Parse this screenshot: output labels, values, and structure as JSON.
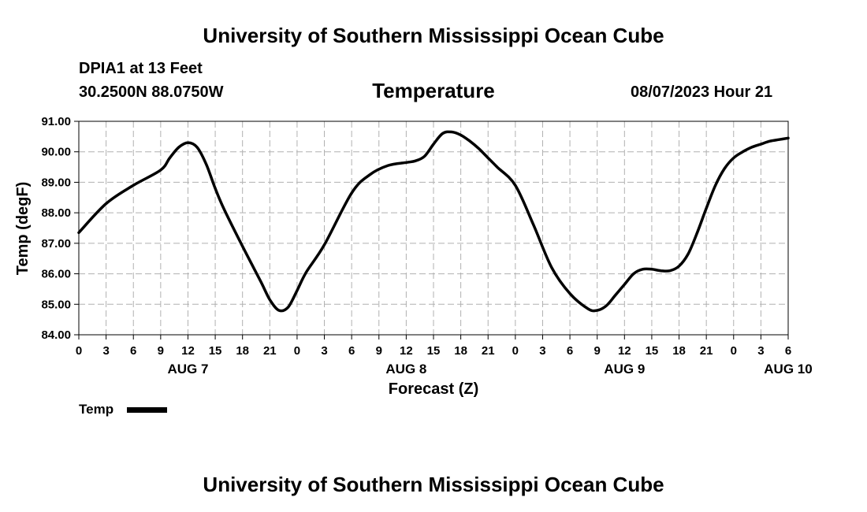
{
  "header": {
    "title": "University of Southern Mississippi Ocean Cube",
    "station": "DPIA1 at 13 Feet",
    "coords": "30.2500N  88.0750W",
    "date": "08/07/2023 Hour 21"
  },
  "footer": {
    "title": "University of Southern Mississippi Ocean Cube"
  },
  "colors": {
    "line": "#000000",
    "grid": "#b0b0b0",
    "background": "#ffffff"
  },
  "chart_data": {
    "type": "line",
    "title": "Temperature",
    "xlabel": "Forecast (Z)",
    "ylabel": "Temp (degF)",
    "ylim": [
      84,
      91
    ],
    "xlim": [
      0,
      78
    ],
    "yticks": [
      84,
      85,
      86,
      87,
      88,
      89,
      90,
      91
    ],
    "ytick_labels": [
      "84.00",
      "85.00",
      "86.00",
      "87.00",
      "88.00",
      "89.00",
      "90.00",
      "91.00"
    ],
    "xticks": [
      0,
      3,
      6,
      9,
      12,
      15,
      18,
      21,
      24,
      27,
      30,
      33,
      36,
      39,
      42,
      45,
      48,
      51,
      54,
      57,
      60,
      63,
      66,
      69,
      72,
      75,
      78
    ],
    "xtick_labels": [
      "0",
      "3",
      "6",
      "9",
      "12",
      "15",
      "18",
      "21",
      "0",
      "3",
      "6",
      "9",
      "12",
      "15",
      "18",
      "21",
      "0",
      "3",
      "6",
      "9",
      "12",
      "15",
      "18",
      "21",
      "0",
      "3",
      "6"
    ],
    "day_labels": [
      {
        "text": "AUG 7",
        "hour": 12
      },
      {
        "text": "AUG 8",
        "hour": 36
      },
      {
        "text": "AUG 9",
        "hour": 60
      },
      {
        "text": "AUG 10",
        "hour": 78
      }
    ],
    "grid": true,
    "legend": {
      "label": "Temp",
      "position": "bottom-left"
    },
    "series": [
      {
        "name": "Temp",
        "x": [
          0,
          3,
          6,
          9,
          10,
          11,
          12,
          13,
          14,
          15,
          16,
          18,
          20,
          21,
          22,
          23,
          24,
          25,
          27,
          30,
          32,
          34,
          36,
          37,
          38,
          39,
          40,
          41,
          42,
          43,
          44,
          45,
          46,
          48,
          50,
          52,
          54,
          56,
          57,
          58,
          59,
          60,
          61,
          62,
          63,
          64,
          65,
          66,
          67,
          68,
          69,
          70,
          71,
          72,
          73,
          74,
          75,
          76,
          77,
          78
        ],
        "values": [
          87.35,
          88.3,
          88.9,
          89.4,
          89.8,
          90.15,
          90.3,
          90.15,
          89.6,
          88.8,
          88.1,
          86.9,
          85.75,
          85.15,
          84.8,
          84.9,
          85.45,
          86.05,
          86.95,
          88.65,
          89.25,
          89.55,
          89.65,
          89.7,
          89.85,
          90.25,
          90.6,
          90.65,
          90.55,
          90.35,
          90.1,
          89.8,
          89.5,
          88.9,
          87.6,
          86.2,
          85.35,
          84.85,
          84.8,
          84.95,
          85.3,
          85.65,
          86.0,
          86.15,
          86.15,
          86.1,
          86.1,
          86.25,
          86.65,
          87.35,
          88.15,
          88.9,
          89.45,
          89.8,
          90.0,
          90.15,
          90.25,
          90.35,
          90.4,
          90.45
        ]
      }
    ]
  }
}
